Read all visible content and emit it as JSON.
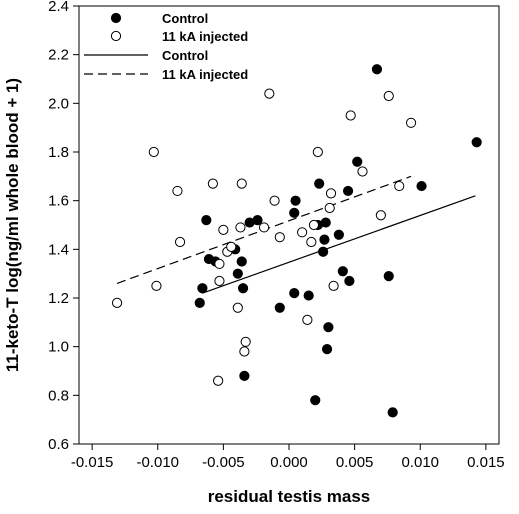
{
  "chart_data": {
    "type": "scatter",
    "xlabel": "residual testis mass",
    "ylabel": "11-keto-T log(ng/ml whole blood + 1)",
    "xlim": [
      -0.016,
      0.016
    ],
    "ylim": [
      0.6,
      2.4
    ],
    "xticks": [
      "-0.015",
      "-0.010",
      "-0.005",
      "0.000",
      "0.005",
      "0.010",
      "0.015"
    ],
    "xtick_values": [
      -0.015,
      -0.01,
      -0.005,
      0.0,
      0.005,
      0.01,
      0.015
    ],
    "yticks": [
      "0.6",
      "0.8",
      "1.0",
      "1.2",
      "1.4",
      "1.6",
      "1.8",
      "2.0",
      "2.2",
      "2.4"
    ],
    "ytick_values": [
      0.6,
      0.8,
      1.0,
      1.2,
      1.4,
      1.6,
      1.8,
      2.0,
      2.2,
      2.4
    ],
    "grid": false,
    "legend_position": "top-left",
    "legend": [
      {
        "label": "Control",
        "kind": "marker",
        "style": "filled"
      },
      {
        "label": "11 kA injected",
        "kind": "marker",
        "style": "open"
      },
      {
        "label": "Control",
        "kind": "line",
        "style": "solid"
      },
      {
        "label": "11 kA injected",
        "kind": "line",
        "style": "dashed"
      }
    ],
    "series": [
      {
        "name": "Control",
        "marker": "filled",
        "points": [
          [
            -0.0068,
            1.18
          ],
          [
            -0.0066,
            1.24
          ],
          [
            -0.0063,
            1.52
          ],
          [
            -0.0061,
            1.36
          ],
          [
            -0.0056,
            1.35
          ],
          [
            -0.0041,
            1.4
          ],
          [
            -0.0039,
            1.3
          ],
          [
            -0.0036,
            1.35
          ],
          [
            -0.0035,
            1.24
          ],
          [
            -0.0034,
            0.88
          ],
          [
            -0.003,
            1.51
          ],
          [
            -0.0024,
            1.52
          ],
          [
            -0.0007,
            1.16
          ],
          [
            0.0004,
            1.22
          ],
          [
            0.0004,
            1.55
          ],
          [
            0.0005,
            1.6
          ],
          [
            0.0015,
            1.21
          ],
          [
            0.002,
            0.78
          ],
          [
            0.0022,
            1.5
          ],
          [
            0.0023,
            1.67
          ],
          [
            0.0026,
            1.39
          ],
          [
            0.0027,
            1.44
          ],
          [
            0.0028,
            1.51
          ],
          [
            0.0029,
            0.99
          ],
          [
            0.003,
            1.08
          ],
          [
            0.0038,
            1.46
          ],
          [
            0.0041,
            1.31
          ],
          [
            0.0045,
            1.64
          ],
          [
            0.0046,
            1.27
          ],
          [
            0.0052,
            1.76
          ],
          [
            0.0067,
            2.14
          ],
          [
            0.0076,
            1.29
          ],
          [
            0.0079,
            0.73
          ],
          [
            0.0101,
            1.66
          ],
          [
            0.0143,
            1.84
          ]
        ]
      },
      {
        "name": "11 kA injected",
        "marker": "open",
        "points": [
          [
            -0.0131,
            1.18
          ],
          [
            -0.0103,
            1.8
          ],
          [
            -0.0101,
            1.25
          ],
          [
            -0.0085,
            1.64
          ],
          [
            -0.0083,
            1.43
          ],
          [
            -0.0058,
            1.67
          ],
          [
            -0.0054,
            0.86
          ],
          [
            -0.0053,
            1.34
          ],
          [
            -0.0053,
            1.27
          ],
          [
            -0.005,
            1.48
          ],
          [
            -0.0047,
            1.39
          ],
          [
            -0.0044,
            1.41
          ],
          [
            -0.0039,
            1.16
          ],
          [
            -0.0037,
            1.49
          ],
          [
            -0.0036,
            1.67
          ],
          [
            -0.0034,
            0.98
          ],
          [
            -0.0033,
            1.02
          ],
          [
            -0.0019,
            1.49
          ],
          [
            -0.0015,
            2.04
          ],
          [
            -0.0011,
            1.6
          ],
          [
            -0.0007,
            1.45
          ],
          [
            0.001,
            1.47
          ],
          [
            0.0014,
            1.11
          ],
          [
            0.0017,
            1.43
          ],
          [
            0.0019,
            1.5
          ],
          [
            0.0022,
            1.8
          ],
          [
            0.0031,
            1.57
          ],
          [
            0.0032,
            1.63
          ],
          [
            0.0034,
            1.25
          ],
          [
            0.0047,
            1.95
          ],
          [
            0.0056,
            1.72
          ],
          [
            0.007,
            1.54
          ],
          [
            0.0076,
            2.03
          ],
          [
            0.0084,
            1.66
          ],
          [
            0.0093,
            1.92
          ]
        ]
      }
    ],
    "lines": [
      {
        "name": "Control",
        "style": "solid",
        "x": [
          -0.0066,
          0.0142
        ],
        "y": [
          1.22,
          1.62
        ]
      },
      {
        "name": "11 kA injected",
        "style": "dashed",
        "x": [
          -0.0131,
          0.0093
        ],
        "y": [
          1.26,
          1.7
        ]
      }
    ]
  }
}
